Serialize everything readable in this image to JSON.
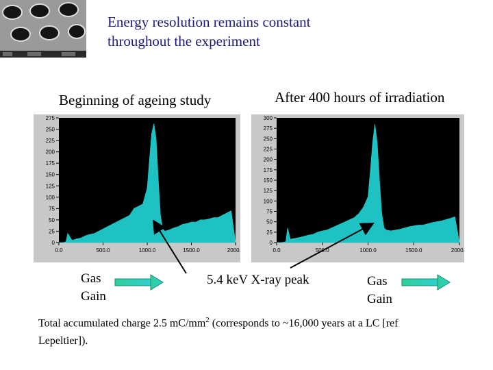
{
  "slide": {
    "title_line1": "Energy resolution remains constant",
    "title_line2": "throughout the experiment",
    "left_label": "Beginning of ageing study",
    "right_label": "After 400 hours of irradiation",
    "left_axis_caption_line1": "Gas",
    "left_axis_caption_line2": "Gain",
    "peak_caption": "5.4 keV X-ray peak",
    "right_axis_caption_line1": "Gas",
    "right_axis_caption_line2": "Gain",
    "footnote_part1": "Total accumulated charge 2.5 mC/mm",
    "footnote_sup": "2",
    "footnote_part2": "  (corresponds to ~16,000 years at a LC [ref Lepeltier])."
  },
  "colors": {
    "title": "#1a1a80",
    "fill": "#1ec2c2",
    "plot_bg": "#000000",
    "frame": "#c8c8c8",
    "arrow": "#2fcfb0"
  },
  "chart_data": [
    {
      "type": "area",
      "xlim": [
        0,
        2000
      ],
      "ylim": [
        0,
        275
      ],
      "xticks": [
        "0.0",
        "500.0",
        "1000.0",
        "1500.0",
        "2000.0"
      ],
      "yticks": [
        "275",
        "250",
        "225",
        "200",
        "175",
        "150",
        "125",
        "100",
        "75",
        "50",
        "25",
        "0"
      ],
      "x": [
        0,
        50,
        80,
        100,
        150,
        200,
        250,
        300,
        350,
        400,
        450,
        500,
        550,
        600,
        650,
        700,
        750,
        800,
        850,
        900,
        950,
        1000,
        1025,
        1050,
        1075,
        1100,
        1125,
        1150,
        1175,
        1200,
        1250,
        1300,
        1350,
        1400,
        1450,
        1500,
        1550,
        1600,
        1650,
        1700,
        1750,
        1800,
        1850,
        1900,
        1950,
        2000
      ],
      "y": [
        0,
        0,
        2,
        20,
        5,
        8,
        10,
        15,
        18,
        20,
        25,
        30,
        35,
        40,
        45,
        50,
        55,
        60,
        75,
        80,
        85,
        120,
        180,
        240,
        262,
        230,
        140,
        60,
        30,
        25,
        28,
        32,
        35,
        40,
        42,
        45,
        45,
        50,
        50,
        52,
        55,
        55,
        60,
        65,
        70,
        0
      ]
    },
    {
      "type": "area",
      "xlim": [
        0,
        2000
      ],
      "ylim": [
        0,
        300
      ],
      "xticks": [
        "0.0",
        "500.0",
        "1000.0",
        "1500.0",
        "2000.0"
      ],
      "yticks": [
        "300",
        "275",
        "250",
        "225",
        "200",
        "175",
        "150",
        "125",
        "100",
        "75",
        "50",
        "25",
        "0"
      ],
      "x": [
        0,
        50,
        100,
        120,
        150,
        200,
        250,
        300,
        350,
        400,
        450,
        500,
        550,
        600,
        650,
        700,
        750,
        800,
        850,
        900,
        950,
        1000,
        1025,
        1050,
        1075,
        1100,
        1125,
        1150,
        1175,
        1200,
        1250,
        1300,
        1350,
        1400,
        1450,
        1500,
        1550,
        1600,
        1650,
        1700,
        1750,
        1800,
        1850,
        1900,
        1950,
        2000
      ],
      "y": [
        0,
        0,
        2,
        35,
        8,
        10,
        12,
        15,
        18,
        20,
        25,
        28,
        30,
        35,
        40,
        45,
        50,
        55,
        60,
        70,
        85,
        110,
        170,
        240,
        285,
        240,
        150,
        70,
        35,
        30,
        28,
        30,
        32,
        35,
        38,
        40,
        42,
        42,
        45,
        48,
        50,
        52,
        55,
        58,
        62,
        0
      ]
    }
  ]
}
